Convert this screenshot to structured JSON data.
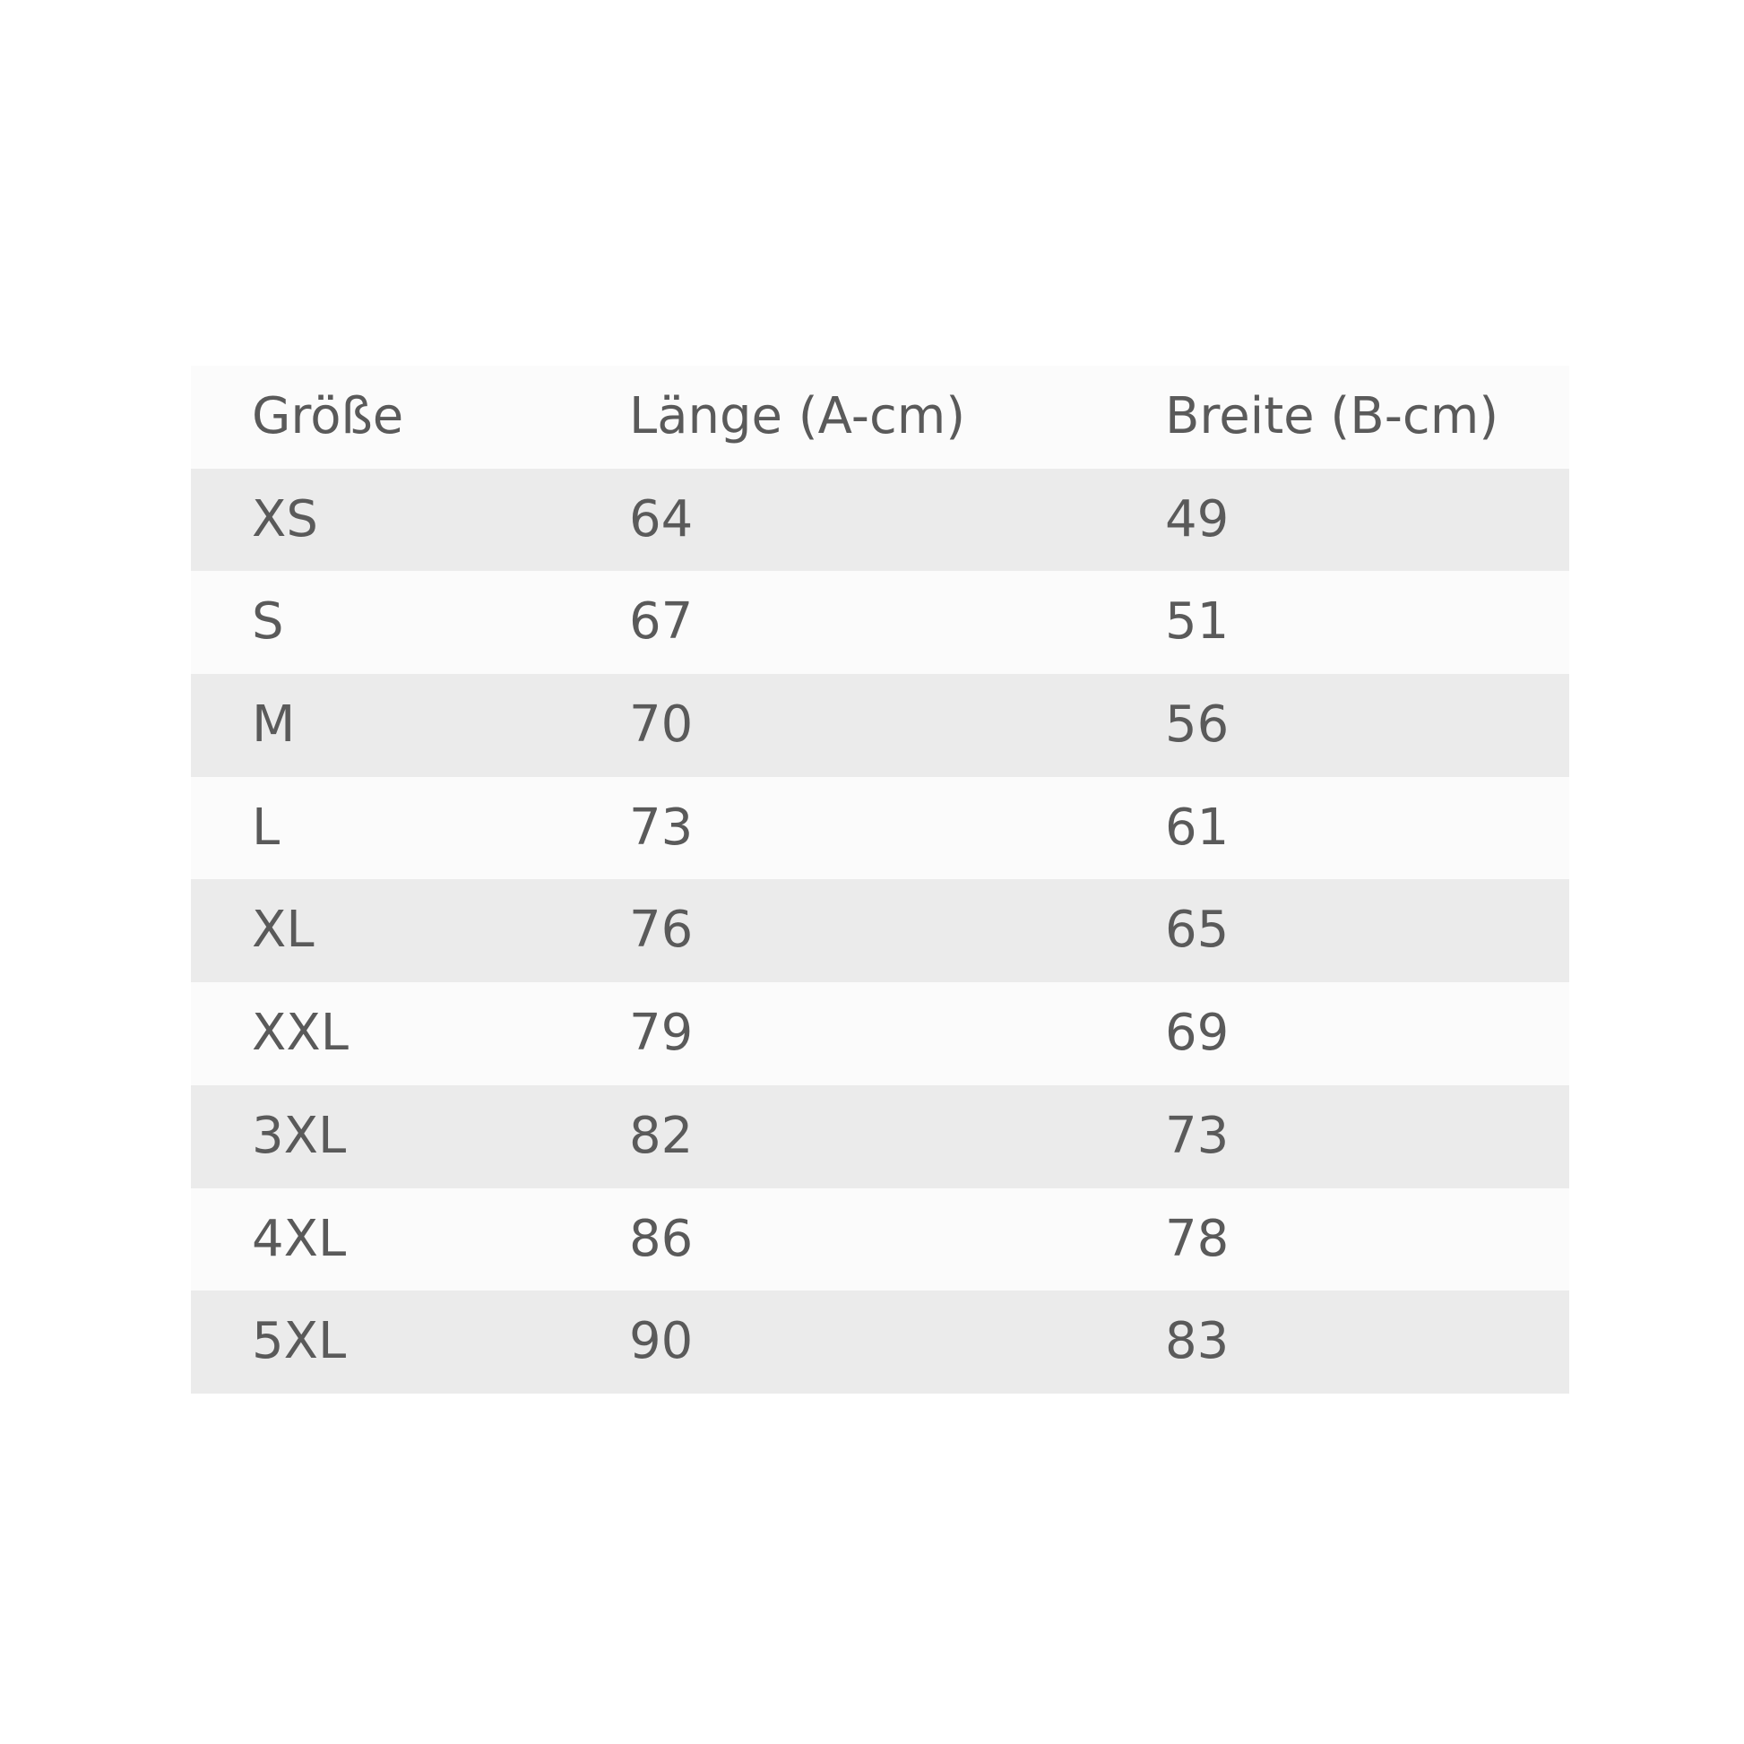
{
  "table": {
    "headers": [
      "Größe",
      "Länge (A-cm)",
      "Breite (B-cm)"
    ],
    "rows": [
      [
        "XS",
        "64",
        "49"
      ],
      [
        "S",
        "67",
        "51"
      ],
      [
        "M",
        "70",
        "56"
      ],
      [
        "L",
        "73",
        "61"
      ],
      [
        "XL",
        "76",
        "65"
      ],
      [
        "XXL",
        "79",
        "69"
      ],
      [
        "3XL",
        "82",
        "73"
      ],
      [
        "4XL",
        "86",
        "78"
      ],
      [
        "5XL",
        "90",
        "83"
      ]
    ]
  },
  "colors": {
    "stripe": "#ebebeb",
    "text": "#5a5a5a"
  }
}
